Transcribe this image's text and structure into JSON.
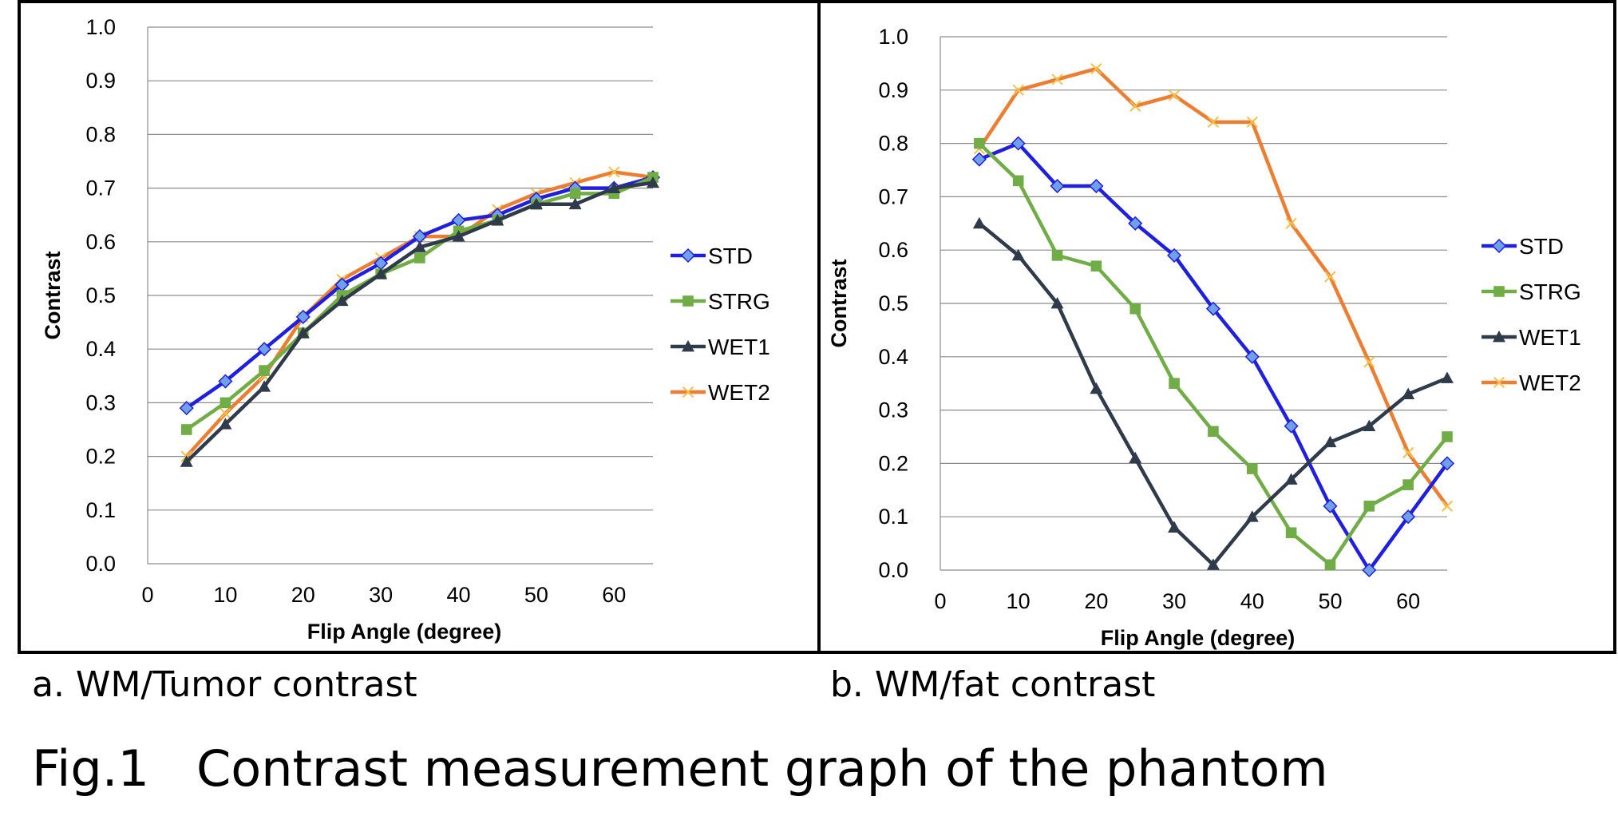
{
  "figure": {
    "caption_a": "a. WM/Tumor contrast",
    "caption_b": "b. WM/fat contrast",
    "caption": "Fig.1   Contrast measurement graph of the phantom"
  },
  "chart_data": [
    {
      "type": "line",
      "id": "a",
      "title": "",
      "xlabel": "Flip Angle (degree)",
      "ylabel": "Contrast",
      "xlim": [
        0,
        65
      ],
      "ylim": [
        0,
        1.0
      ],
      "xticks": [
        0,
        10,
        20,
        30,
        40,
        50,
        60
      ],
      "yticks": [
        "0.0",
        "0.1",
        "0.2",
        "0.3",
        "0.4",
        "0.5",
        "0.6",
        "0.7",
        "0.8",
        "0.9",
        "1.0"
      ],
      "grid": "horizontal",
      "legend_position": "right",
      "x": [
        5,
        10,
        15,
        20,
        25,
        30,
        35,
        40,
        45,
        50,
        55,
        60,
        65
      ],
      "series": [
        {
          "name": "STD",
          "color": "#1f1fe0",
          "marker": "diamond",
          "values": [
            0.29,
            0.34,
            0.4,
            0.46,
            0.52,
            0.56,
            0.61,
            0.64,
            0.65,
            0.68,
            0.7,
            0.7,
            0.72
          ]
        },
        {
          "name": "STRG",
          "color": "#70ad47",
          "marker": "square",
          "values": [
            0.25,
            0.3,
            0.36,
            0.43,
            0.5,
            0.54,
            0.57,
            0.62,
            0.64,
            0.67,
            0.69,
            0.69,
            0.72
          ]
        },
        {
          "name": "WET1",
          "color": "#2f3a4a",
          "marker": "triangle",
          "values": [
            0.19,
            0.26,
            0.33,
            0.43,
            0.49,
            0.54,
            0.59,
            0.61,
            0.64,
            0.67,
            0.67,
            0.7,
            0.71
          ]
        },
        {
          "name": "WET2",
          "color": "#ed7d31",
          "marker": "x",
          "values": [
            0.2,
            0.28,
            0.35,
            0.46,
            0.53,
            0.57,
            0.61,
            0.61,
            0.66,
            0.69,
            0.71,
            0.73,
            0.72
          ]
        }
      ]
    },
    {
      "type": "line",
      "id": "b",
      "title": "",
      "xlabel": "Flip Angle (degree)",
      "ylabel": "Contrast",
      "xlim": [
        0,
        65
      ],
      "ylim": [
        0,
        1.0
      ],
      "xticks": [
        0,
        10,
        20,
        30,
        40,
        50,
        60
      ],
      "yticks": [
        "0.0",
        "0.1",
        "0.2",
        "0.3",
        "0.4",
        "0.5",
        "0.6",
        "0.7",
        "0.8",
        "0.9",
        "1.0"
      ],
      "grid": "horizontal",
      "legend_position": "right",
      "x": [
        5,
        10,
        15,
        20,
        25,
        30,
        35,
        40,
        45,
        50,
        55,
        60,
        65
      ],
      "series": [
        {
          "name": "STD",
          "color": "#1f1fe0",
          "marker": "diamond",
          "values": [
            0.77,
            0.8,
            0.72,
            0.72,
            0.65,
            0.59,
            0.49,
            0.4,
            0.27,
            0.12,
            0.0,
            0.1,
            0.2
          ]
        },
        {
          "name": "STRG",
          "color": "#70ad47",
          "marker": "square",
          "values": [
            0.8,
            0.73,
            0.59,
            0.57,
            0.49,
            0.35,
            0.26,
            0.19,
            0.07,
            0.01,
            0.12,
            0.16,
            0.25
          ]
        },
        {
          "name": "WET1",
          "color": "#2f3a4a",
          "marker": "triangle",
          "values": [
            0.65,
            0.59,
            0.5,
            0.34,
            0.21,
            0.08,
            0.01,
            0.1,
            0.17,
            0.24,
            0.27,
            0.33,
            0.36
          ]
        },
        {
          "name": "WET2",
          "color": "#ed7d31",
          "marker": "x",
          "values": [
            0.79,
            0.9,
            0.92,
            0.94,
            0.87,
            0.89,
            0.84,
            0.84,
            0.65,
            0.55,
            0.39,
            0.22,
            0.12
          ]
        }
      ]
    }
  ]
}
